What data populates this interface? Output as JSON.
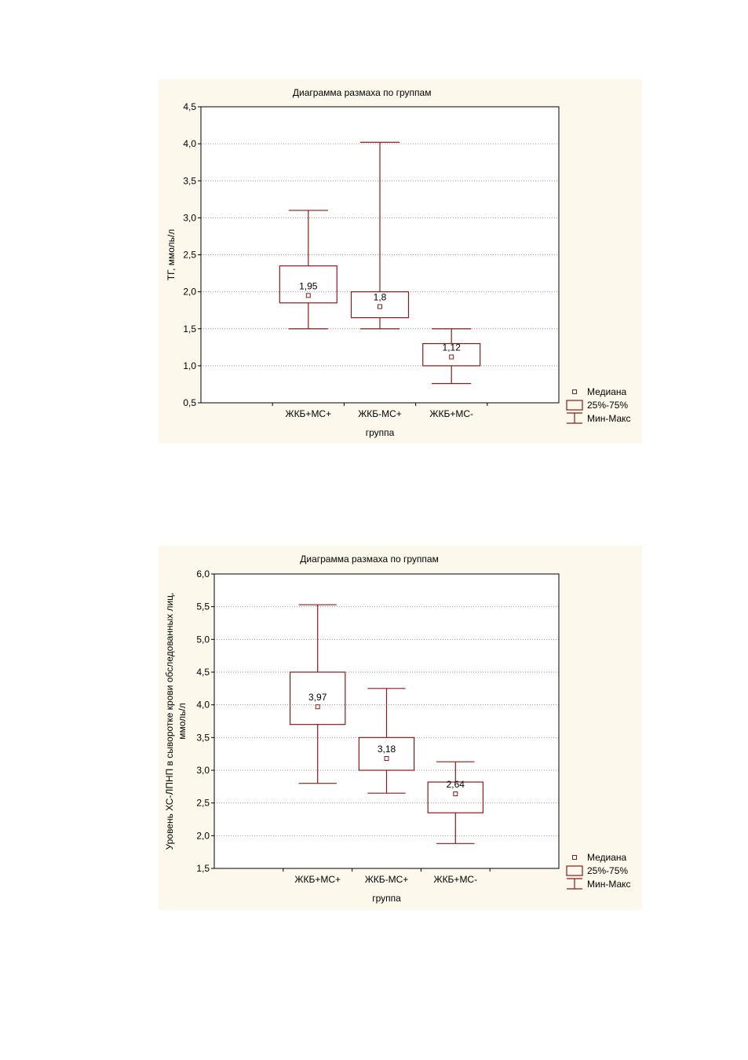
{
  "colors": {
    "box": "#8b1a1a",
    "grid": "#999999",
    "panel_bg": "#fcf8ec",
    "plot_bg": "#ffffff"
  },
  "chart_data": [
    {
      "type": "box",
      "title": "Диаграмма размаха по группам",
      "xlabel": "группа",
      "ylabel": "ТГ, ммоль/л",
      "ylim": [
        0.5,
        4.5
      ],
      "yticks": [
        0.5,
        1.0,
        1.5,
        2.0,
        2.5,
        3.0,
        3.5,
        4.0,
        4.5
      ],
      "ytick_labels": [
        "0,5",
        "1,0",
        "1,5",
        "2,0",
        "2,5",
        "3,0",
        "3,5",
        "4,0",
        "4,5"
      ],
      "grid": true,
      "legend_position": "bottom-right",
      "legend": [
        "Медиана",
        "25%-75%",
        "Мин-Макс"
      ],
      "categories": [
        "ЖКБ+МС+",
        "ЖКБ-МС+",
        "ЖКБ+МС-"
      ],
      "boxes": [
        {
          "min": 1.5,
          "q1": 1.85,
          "median": 1.95,
          "q3": 2.35,
          "max": 3.1,
          "label": "1,95"
        },
        {
          "min": 1.5,
          "q1": 1.65,
          "median": 1.8,
          "q3": 2.0,
          "max": 4.02,
          "label": "1,8"
        },
        {
          "min": 0.76,
          "q1": 1.0,
          "median": 1.12,
          "q3": 1.3,
          "max": 1.5,
          "label": "1,12"
        }
      ]
    },
    {
      "type": "box",
      "title": "Диаграмма размаха по группам",
      "xlabel": "группа",
      "ylabel": "Уровень ХС-ЛПНП в сыворотке крови обследованных лиц, ммоль/л",
      "ylabel_lines": [
        "Уровень ХС-ЛПНП в сыворотке крови обследованных лиц,",
        "ммоль/л"
      ],
      "ylim": [
        1.5,
        6.0
      ],
      "yticks": [
        1.5,
        2.0,
        2.5,
        3.0,
        3.5,
        4.0,
        4.5,
        5.0,
        5.5,
        6.0
      ],
      "ytick_labels": [
        "1,5",
        "2,0",
        "2,5",
        "3,0",
        "3,5",
        "4,0",
        "4,5",
        "5,0",
        "5,5",
        "6,0"
      ],
      "grid": true,
      "legend_position": "bottom-right",
      "legend": [
        "Медиана",
        "25%-75%",
        "Мин-Макс"
      ],
      "categories": [
        "ЖКБ+МС+",
        "ЖКБ-МС+",
        "ЖКБ+МС-"
      ],
      "boxes": [
        {
          "min": 2.8,
          "q1": 3.7,
          "median": 3.97,
          "q3": 4.5,
          "max": 5.53,
          "label": "3,97"
        },
        {
          "min": 2.65,
          "q1": 3.0,
          "median": 3.18,
          "q3": 3.5,
          "max": 4.25,
          "label": "3,18"
        },
        {
          "min": 1.88,
          "q1": 2.35,
          "median": 2.64,
          "q3": 2.82,
          "max": 3.13,
          "label": "2,64"
        }
      ]
    }
  ]
}
